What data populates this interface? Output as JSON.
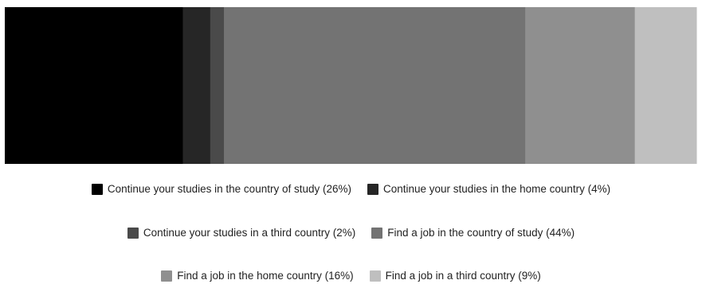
{
  "chart_data": {
    "type": "bar",
    "orientation": "horizontal-stacked-100",
    "grid": false,
    "legend_position": "bottom",
    "categories": [
      ""
    ],
    "series": [
      {
        "name": "Continue your studies in the country of study (26%)",
        "values": [
          26
        ],
        "color": "#000000"
      },
      {
        "name": "Continue your studies in the home country (4%)",
        "values": [
          4
        ],
        "color": "#262626"
      },
      {
        "name": "Continue your studies in a third country (2%)",
        "values": [
          2
        ],
        "color": "#4a4a4a"
      },
      {
        "name": "Find a job in the country of study (44%)",
        "values": [
          44
        ],
        "color": "#737373"
      },
      {
        "name": "Find a job in the home country (16%)",
        "values": [
          16
        ],
        "color": "#8f8f8f"
      },
      {
        "name": "Find a job in a third country (9%)",
        "values": [
          9
        ],
        "color": "#bfbfbf"
      }
    ]
  }
}
